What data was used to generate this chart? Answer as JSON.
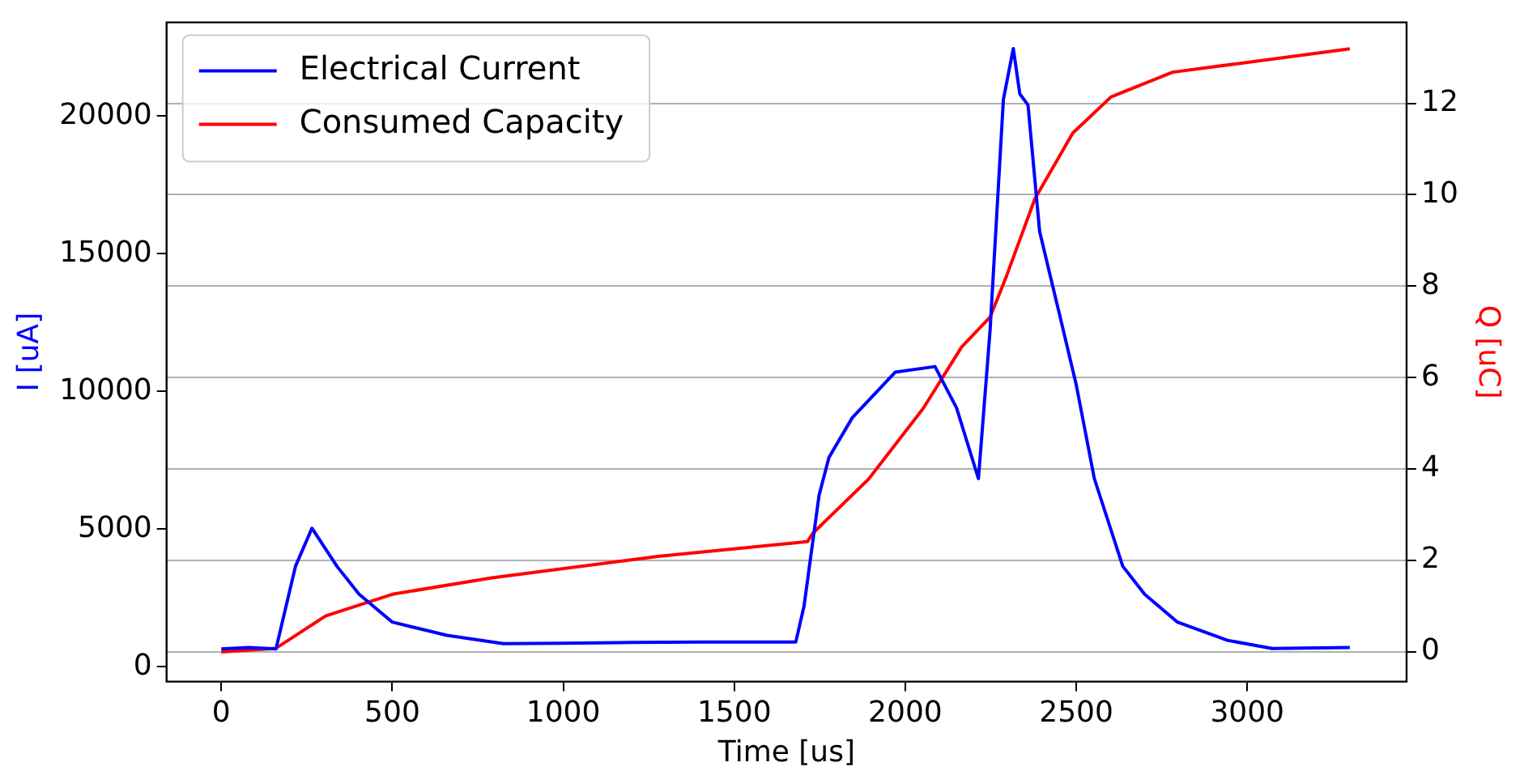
{
  "chart_data": {
    "type": "line",
    "xlabel": "Time [us]",
    "ylabel": "I [uA]",
    "y2label": "Q [uC]",
    "xlim": [
      -160,
      3466
    ],
    "xticks": [
      0,
      500,
      1000,
      1500,
      2000,
      2500,
      3000
    ],
    "ylim": [
      -540,
      23400
    ],
    "yticks": [
      0,
      5000,
      10000,
      15000,
      20000
    ],
    "y2lim": [
      -0.65,
      13.77
    ],
    "y2ticks": [
      0,
      2,
      4,
      6,
      8,
      10,
      12
    ],
    "grid": "y2",
    "legend": "top left",
    "marker": "none",
    "line_style": "solid",
    "series": [
      {
        "name": "Electrical Current",
        "color": "#0000ff",
        "axis": "y",
        "x": [
          0,
          80,
          160,
          217,
          265,
          338,
          403,
          500,
          660,
          825,
          1000,
          1200,
          1400,
          1680,
          1704,
          1748,
          1777,
          1845,
          1971,
          2087,
          2150,
          2214,
          2248,
          2287,
          2316,
          2335,
          2359,
          2393,
          2451,
          2500,
          2553,
          2636,
          2700,
          2796,
          2942,
          3073,
          3300
        ],
        "values": [
          650,
          700,
          650,
          3650,
          5030,
          3650,
          2630,
          1620,
          1140,
          840,
          850,
          880,
          900,
          900,
          2200,
          6230,
          7600,
          9040,
          10700,
          10900,
          9400,
          6830,
          12200,
          20600,
          22450,
          20800,
          20400,
          15800,
          12800,
          10240,
          6830,
          3650,
          2630,
          1620,
          960,
          660,
          700
        ]
      },
      {
        "name": "Consumed Capacity",
        "color": "#ff0000",
        "axis": "y2",
        "x": [
          0,
          160,
          306,
          500,
          791,
          1277,
          1714,
          1729,
          1893,
          2053,
          2165,
          2248,
          2296,
          2379,
          2490,
          2602,
          2782,
          3300
        ],
        "values": [
          0,
          0.08,
          0.79,
          1.26,
          1.62,
          2.09,
          2.41,
          2.59,
          3.78,
          5.33,
          6.67,
          7.32,
          8.22,
          9.91,
          11.35,
          12.14,
          12.68,
          13.19
        ]
      }
    ]
  }
}
